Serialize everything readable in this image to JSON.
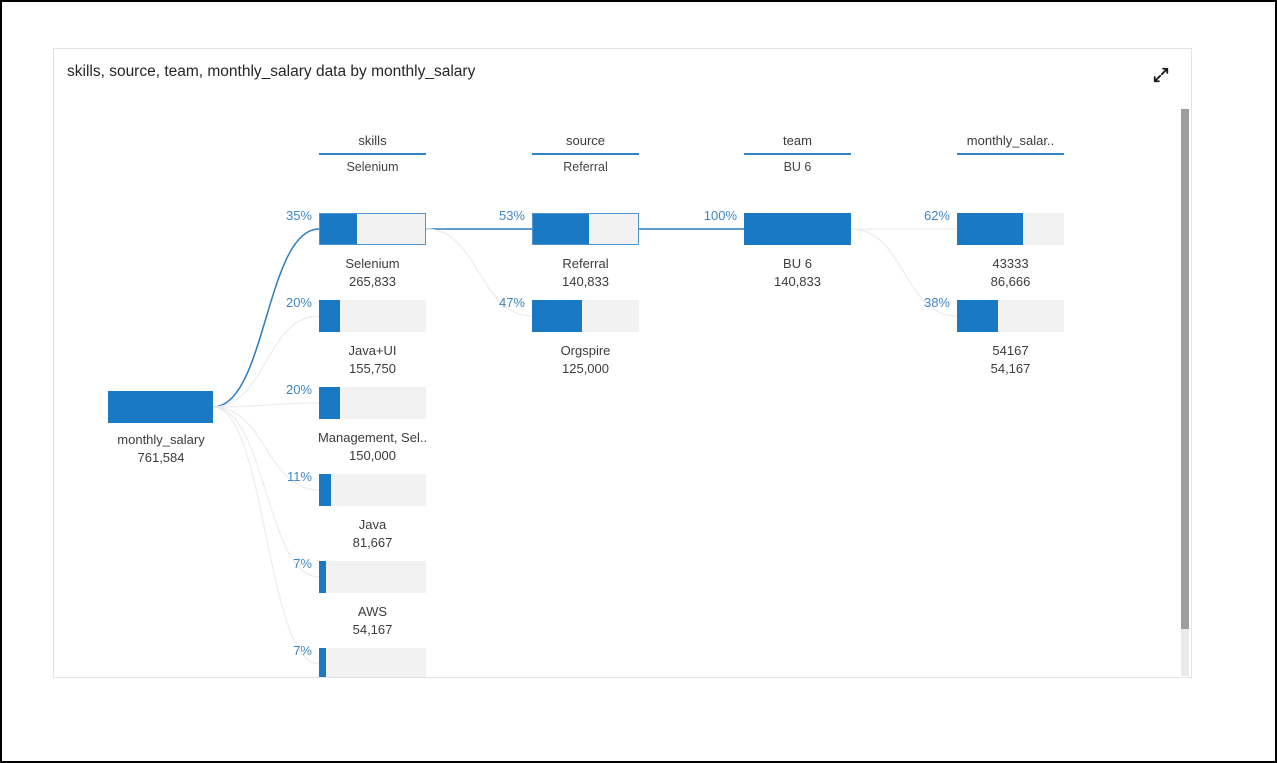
{
  "title": "skills, source, team, monthly_salary data by monthly_salary",
  "icons": {
    "expand_button": "expand-icon (diagonal resize arrows)"
  },
  "colors": {
    "accent": "#1a79c4",
    "percent_text": "#3e87c6",
    "link_active": "#2b7cc0",
    "link_inactive": "#ececec",
    "bar_track": "#f2f2f2",
    "selected_border": "#5094d2",
    "header_underline": "#2d83c6",
    "text": "#3c3c3c",
    "title_text": "#262626",
    "card_border": "#e4e4e4",
    "scrollbar_thumb": "#9d9d9d",
    "scrollbar_track": "#eaeaea"
  },
  "root": {
    "label": "monthly_salary",
    "value": "761,584"
  },
  "columns": [
    {
      "header": "skills",
      "subtitle": "Selenium",
      "nodes": [
        {
          "percent": "35%",
          "fill": 35,
          "label": "Selenium",
          "value": "265,833",
          "selected": true,
          "bordered": true
        },
        {
          "percent": "20%",
          "fill": 20,
          "label": "Java+UI",
          "value": "155,750",
          "selected": false,
          "bordered": false
        },
        {
          "percent": "20%",
          "fill": 20,
          "label": "Management, Sel..",
          "value": "150,000",
          "selected": false,
          "bordered": false
        },
        {
          "percent": "11%",
          "fill": 11,
          "label": "Java",
          "value": "81,667",
          "selected": false,
          "bordered": false
        },
        {
          "percent": "7%",
          "fill": 7,
          "label": "AWS",
          "value": "54,167",
          "selected": false,
          "bordered": false
        },
        {
          "percent": "7%",
          "fill": 7,
          "label": "",
          "value": "",
          "selected": false,
          "bordered": false
        }
      ]
    },
    {
      "header": "source",
      "subtitle": "Referral",
      "nodes": [
        {
          "percent": "53%",
          "fill": 53,
          "label": "Referral",
          "value": "140,833",
          "selected": true,
          "bordered": true
        },
        {
          "percent": "47%",
          "fill": 47,
          "label": "Orgspire",
          "value": "125,000",
          "selected": false,
          "bordered": false
        }
      ]
    },
    {
      "header": "team",
      "subtitle": "BU 6",
      "nodes": [
        {
          "percent": "100%",
          "fill": 100,
          "label": "BU 6",
          "value": "140,833",
          "selected": true,
          "bordered": false
        }
      ]
    },
    {
      "header": "monthly_salar..",
      "subtitle": "",
      "nodes": [
        {
          "percent": "62%",
          "fill": 62,
          "label": "43333",
          "value": "86,666",
          "selected": false,
          "bordered": false
        },
        {
          "percent": "38%",
          "fill": 38,
          "label": "54167",
          "value": "54,167",
          "selected": false,
          "bordered": false
        }
      ]
    }
  ],
  "chart_data": {
    "type": "decomposition_tree",
    "title": "skills, source, team, monthly_salary data by monthly_salary",
    "measure": "monthly_salary",
    "root": {
      "label": "monthly_salary",
      "value": 761584
    },
    "levels": [
      {
        "dimension": "skills",
        "selected": "Selenium",
        "nodes": [
          {
            "label": "Selenium",
            "value": 265833,
            "percent": 35
          },
          {
            "label": "Java+UI",
            "value": 155750,
            "percent": 20
          },
          {
            "label": "Management, Sel..",
            "value": 150000,
            "percent": 20
          },
          {
            "label": "Java",
            "value": 81667,
            "percent": 11
          },
          {
            "label": "AWS",
            "value": 54167,
            "percent": 7
          },
          {
            "label": "",
            "value": null,
            "percent": 7
          }
        ]
      },
      {
        "dimension": "source",
        "selected": "Referral",
        "nodes": [
          {
            "label": "Referral",
            "value": 140833,
            "percent": 53
          },
          {
            "label": "Orgspire",
            "value": 125000,
            "percent": 47
          }
        ]
      },
      {
        "dimension": "team",
        "selected": "BU 6",
        "nodes": [
          {
            "label": "BU 6",
            "value": 140833,
            "percent": 100
          }
        ]
      },
      {
        "dimension": "monthly_salary",
        "selected": null,
        "nodes": [
          {
            "label": "43333",
            "value": 86666,
            "percent": 62
          },
          {
            "label": "54167",
            "value": 54167,
            "percent": 38
          }
        ]
      }
    ]
  }
}
